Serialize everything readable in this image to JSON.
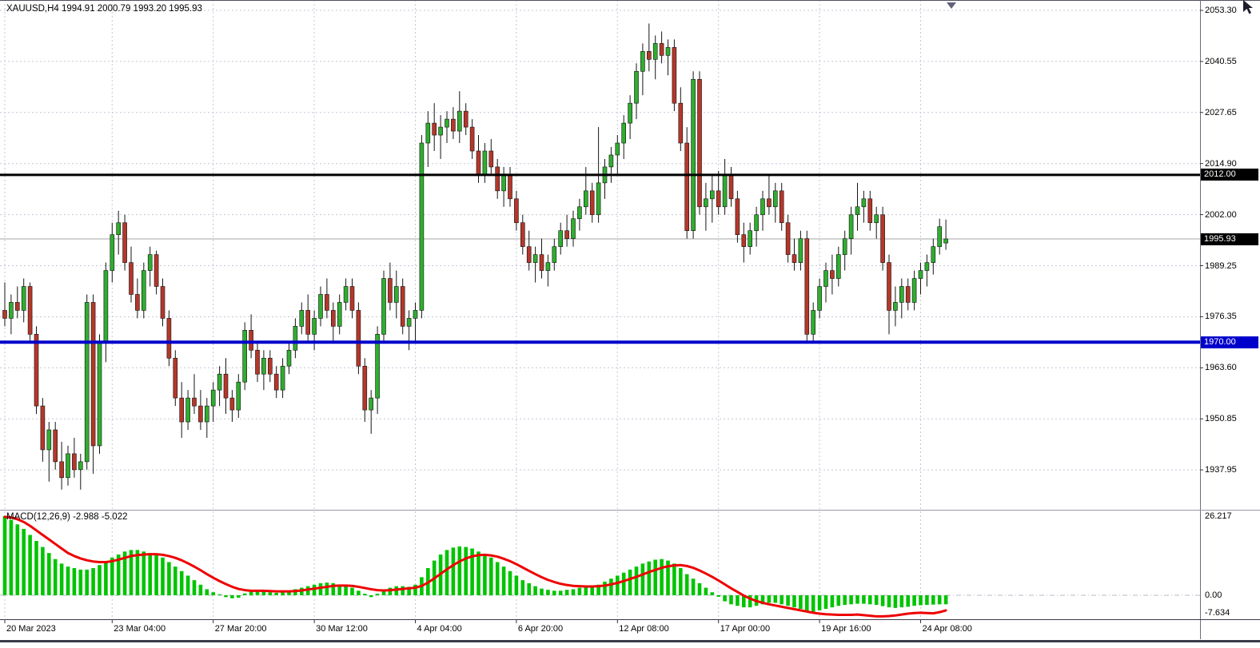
{
  "header": {
    "ohlc_line": "XAUUSD,H4 1994.91 2000.79 1993.20 1995.93"
  },
  "chart_data": {
    "type": "candlestick",
    "symbol": "XAUUSD",
    "timeframe": "H4",
    "current": {
      "open": 1994.91,
      "high": 2000.79,
      "low": 1993.2,
      "close": 1995.93
    },
    "price_axis": {
      "labels": [
        "2053.30",
        "2040.55",
        "2027.65",
        "2014.90",
        "2002.00",
        "1989.25",
        "1976.35",
        "1963.60",
        "1950.85",
        "1937.95"
      ],
      "values": [
        2053.3,
        2040.55,
        2027.65,
        2014.9,
        2002.0,
        1989.25,
        1976.35,
        1963.6,
        1950.85,
        1937.95
      ]
    },
    "time_axis": {
      "labels": [
        {
          "text": "20 Mar 2023",
          "bar": 0
        },
        {
          "text": "23 Mar 04:00",
          "bar": 17
        },
        {
          "text": "27 Mar 20:00",
          "bar": 33
        },
        {
          "text": "30 Mar 12:00",
          "bar": 49
        },
        {
          "text": "4 Apr 04:00",
          "bar": 65
        },
        {
          "text": "6 Apr 20:00",
          "bar": 81
        },
        {
          "text": "12 Apr 08:00",
          "bar": 97
        },
        {
          "text": "17 Apr 00:00",
          "bar": 113
        },
        {
          "text": "19 Apr 16:00",
          "bar": 129
        },
        {
          "text": "24 Apr 08:00",
          "bar": 145
        }
      ]
    },
    "hlines": [
      {
        "value": 2012.0,
        "label": "2012.00",
        "color": "#000000",
        "width": 3
      },
      {
        "value": 1970.0,
        "label": "1970.00",
        "color": "#0000cc",
        "width": 4
      }
    ],
    "current_price_badge": {
      "value": 1995.93,
      "label": "1995.93",
      "color": "#000000"
    },
    "candles": [
      [
        1978,
        1985,
        1974,
        1976
      ],
      [
        1976,
        1982,
        1972,
        1980
      ],
      [
        1980,
        1984,
        1976,
        1978
      ],
      [
        1978,
        1986,
        1975,
        1984
      ],
      [
        1984,
        1985,
        1970,
        1972
      ],
      [
        1972,
        1974,
        1952,
        1954
      ],
      [
        1954,
        1956,
        1940,
        1943
      ],
      [
        1943,
        1950,
        1935,
        1948
      ],
      [
        1948,
        1950,
        1938,
        1940
      ],
      [
        1940,
        1945,
        1933,
        1936
      ],
      [
        1936,
        1944,
        1934,
        1942
      ],
      [
        1942,
        1946,
        1936,
        1938
      ],
      [
        1938,
        1942,
        1933,
        1940
      ],
      [
        1940,
        1982,
        1938,
        1980
      ],
      [
        1980,
        1982,
        1937,
        1944
      ],
      [
        1944,
        1972,
        1942,
        1970
      ],
      [
        1970,
        1990,
        1965,
        1988
      ],
      [
        1988,
        2000,
        1985,
        1997
      ],
      [
        1997,
        2003,
        1992,
        2000
      ],
      [
        2000,
        2002,
        1988,
        1990
      ],
      [
        1990,
        1994,
        1980,
        1982
      ],
      [
        1982,
        1986,
        1976,
        1978
      ],
      [
        1978,
        1990,
        1976,
        1988
      ],
      [
        1988,
        1994,
        1984,
        1992
      ],
      [
        1992,
        1993,
        1982,
        1984
      ],
      [
        1984,
        1986,
        1974,
        1976
      ],
      [
        1976,
        1978,
        1964,
        1966
      ],
      [
        1966,
        1968,
        1954,
        1956
      ],
      [
        1956,
        1960,
        1946,
        1950
      ],
      [
        1950,
        1958,
        1948,
        1956
      ],
      [
        1956,
        1962,
        1952,
        1954
      ],
      [
        1954,
        1958,
        1948,
        1950
      ],
      [
        1950,
        1956,
        1946,
        1954
      ],
      [
        1954,
        1960,
        1950,
        1958
      ],
      [
        1958,
        1964,
        1954,
        1962
      ],
      [
        1962,
        1966,
        1952,
        1956
      ],
      [
        1956,
        1958,
        1950,
        1953
      ],
      [
        1953,
        1962,
        1951,
        1960
      ],
      [
        1960,
        1975,
        1958,
        1973
      ],
      [
        1973,
        1977,
        1966,
        1968
      ],
      [
        1968,
        1970,
        1960,
        1962
      ],
      [
        1962,
        1968,
        1958,
        1966
      ],
      [
        1966,
        1968,
        1960,
        1962
      ],
      [
        1962,
        1964,
        1956,
        1958
      ],
      [
        1958,
        1966,
        1956,
        1964
      ],
      [
        1964,
        1970,
        1962,
        1968
      ],
      [
        1968,
        1976,
        1966,
        1974
      ],
      [
        1974,
        1980,
        1972,
        1978
      ],
      [
        1978,
        1982,
        1970,
        1972
      ],
      [
        1972,
        1978,
        1968,
        1976
      ],
      [
        1976,
        1984,
        1974,
        1982
      ],
      [
        1982,
        1986,
        1976,
        1978
      ],
      [
        1978,
        1980,
        1970,
        1974
      ],
      [
        1974,
        1982,
        1972,
        1980
      ],
      [
        1980,
        1986,
        1978,
        1984
      ],
      [
        1984,
        1986,
        1976,
        1978
      ],
      [
        1978,
        1980,
        1962,
        1964
      ],
      [
        1964,
        1966,
        1950,
        1953
      ],
      [
        1953,
        1958,
        1947,
        1956
      ],
      [
        1956,
        1974,
        1952,
        1972
      ],
      [
        1972,
        1988,
        1970,
        1986
      ],
      [
        1986,
        1990,
        1978,
        1980
      ],
      [
        1980,
        1988,
        1976,
        1984
      ],
      [
        1984,
        1986,
        1972,
        1974
      ],
      [
        1974,
        1978,
        1968,
        1976
      ],
      [
        1976,
        1980,
        1970,
        1978
      ],
      [
        1978,
        2022,
        1976,
        2020
      ],
      [
        2020,
        2028,
        2014,
        2025
      ],
      [
        2025,
        2030,
        2018,
        2022
      ],
      [
        2022,
        2027,
        2016,
        2024
      ],
      [
        2024,
        2028,
        2020,
        2026
      ],
      [
        2026,
        2029,
        2021,
        2023
      ],
      [
        2023,
        2033,
        2020,
        2028
      ],
      [
        2028,
        2030,
        2022,
        2024
      ],
      [
        2024,
        2026,
        2016,
        2018
      ],
      [
        2018,
        2022,
        2010,
        2012
      ],
      [
        2012,
        2020,
        2010,
        2018
      ],
      [
        2018,
        2021,
        2012,
        2014
      ],
      [
        2014,
        2016,
        2006,
        2008
      ],
      [
        2008,
        2014,
        2004,
        2012
      ],
      [
        2012,
        2014,
        2004,
        2006
      ],
      [
        2006,
        2008,
        1998,
        2000
      ],
      [
        2000,
        2002,
        1992,
        1994
      ],
      [
        1994,
        1998,
        1988,
        1990
      ],
      [
        1990,
        1994,
        1985,
        1992
      ],
      [
        1992,
        1996,
        1986,
        1988
      ],
      [
        1988,
        1992,
        1984,
        1990
      ],
      [
        1990,
        1996,
        1988,
        1994
      ],
      [
        1994,
        2000,
        1992,
        1998
      ],
      [
        1998,
        2002,
        1994,
        1996
      ],
      [
        1996,
        2003,
        1994,
        2001
      ],
      [
        2001,
        2006,
        1998,
        2004
      ],
      [
        2004,
        2014,
        2002,
        2008
      ],
      [
        2008,
        2010,
        2000,
        2002
      ],
      [
        2002,
        2024,
        2000,
        2010
      ],
      [
        2010,
        2016,
        2006,
        2014
      ],
      [
        2014,
        2019,
        2010,
        2017
      ],
      [
        2017,
        2022,
        2012,
        2020
      ],
      [
        2020,
        2027,
        2016,
        2025
      ],
      [
        2025,
        2032,
        2021,
        2030
      ],
      [
        2030,
        2040,
        2026,
        2038
      ],
      [
        2038,
        2045,
        2032,
        2043
      ],
      [
        2043,
        2050,
        2038,
        2041
      ],
      [
        2041,
        2047,
        2036,
        2045
      ],
      [
        2045,
        2048,
        2040,
        2042
      ],
      [
        2042,
        2046,
        2037,
        2044
      ],
      [
        2044,
        2046,
        2028,
        2030
      ],
      [
        2030,
        2034,
        2018,
        2020
      ],
      [
        2020,
        2024,
        1996,
        1998
      ],
      [
        1998,
        2038,
        1996,
        2036
      ],
      [
        2036,
        2038,
        2002,
        2004
      ],
      [
        2004,
        2010,
        1998,
        2006
      ],
      [
        2006,
        2012,
        2000,
        2008
      ],
      [
        2008,
        2013,
        2002,
        2004
      ],
      [
        2004,
        2016,
        2002,
        2012
      ],
      [
        2012,
        2014,
        2004,
        2006
      ],
      [
        2006,
        2008,
        1995,
        1997
      ],
      [
        1997,
        2000,
        1990,
        1994
      ],
      [
        1994,
        2000,
        1992,
        1998
      ],
      [
        1998,
        2004,
        1994,
        2002
      ],
      [
        2002,
        2008,
        1998,
        2006
      ],
      [
        2006,
        2012,
        2002,
        2004
      ],
      [
        2004,
        2010,
        2000,
        2008
      ],
      [
        2008,
        2010,
        1998,
        2000
      ],
      [
        2000,
        2002,
        1990,
        1992
      ],
      [
        1992,
        1996,
        1988,
        1990
      ],
      [
        1990,
        1998,
        1988,
        1996
      ],
      [
        1996,
        1998,
        1970,
        1972
      ],
      [
        1972,
        1980,
        1970,
        1978
      ],
      [
        1978,
        1986,
        1976,
        1984
      ],
      [
        1984,
        1990,
        1980,
        1988
      ],
      [
        1988,
        1992,
        1982,
        1986
      ],
      [
        1986,
        1994,
        1984,
        1992
      ],
      [
        1992,
        1998,
        1988,
        1996
      ],
      [
        1996,
        2004,
        1992,
        2002
      ],
      [
        2002,
        2010,
        1998,
        2004
      ],
      [
        2004,
        2008,
        2000,
        2006
      ],
      [
        2006,
        2008,
        1998,
        2000
      ],
      [
        2000,
        2004,
        1996,
        2002
      ],
      [
        2002,
        2004,
        1988,
        1990
      ],
      [
        1990,
        1992,
        1972,
        1978
      ],
      [
        1978,
        1984,
        1974,
        1980
      ],
      [
        1980,
        1986,
        1976,
        1984
      ],
      [
        1984,
        1986,
        1978,
        1980
      ],
      [
        1980,
        1988,
        1978,
        1986
      ],
      [
        1986,
        1990,
        1982,
        1988
      ],
      [
        1988,
        1992,
        1984,
        1990
      ],
      [
        1990,
        1996,
        1987,
        1994
      ],
      [
        1994,
        2001,
        1992,
        1999
      ],
      [
        1994.91,
        2000.79,
        1993.2,
        1995.93
      ]
    ],
    "macd": {
      "name": "MACD",
      "params": "12,26,9",
      "label": "MACD(12,26,9) -2.988 -5.022",
      "macd_value": -2.988,
      "signal_value": -5.022,
      "axis_labels": [
        "26.217",
        "0.00",
        "-7.634"
      ],
      "axis_values": [
        26.217,
        0,
        -7.634
      ],
      "histogram": [
        26.217,
        25,
        23.5,
        22,
        20,
        18,
        16,
        14,
        12,
        10.5,
        9.5,
        9,
        8.5,
        8.5,
        9,
        10,
        11,
        12.5,
        13.5,
        14.5,
        15,
        15,
        14.5,
        14,
        13.5,
        12.5,
        11,
        9.5,
        8,
        6.5,
        5,
        3.5,
        2,
        1,
        0.3,
        -0.6,
        -1,
        -0.8,
        0.6,
        1.5,
        1.8,
        1.5,
        1,
        0.8,
        1,
        1.5,
        2,
        2.5,
        3,
        3.5,
        4,
        4.2,
        4,
        3.5,
        3,
        2.5,
        1.5,
        0.5,
        -0.6,
        0.5,
        1.5,
        2.5,
        3,
        3,
        2.8,
        3.5,
        6,
        9,
        11.5,
        13.5,
        15,
        15.8,
        16.2,
        16,
        15.5,
        14.5,
        13.5,
        12.5,
        11,
        9.5,
        8,
        6.5,
        5,
        4,
        3,
        2.2,
        1.8,
        1.5,
        1.5,
        1.8,
        2,
        2.5,
        3,
        3,
        3.5,
        4.5,
        5.5,
        6.5,
        7.5,
        8.5,
        9.5,
        10.5,
        11.2,
        11.8,
        12,
        11.5,
        10.5,
        9,
        7,
        5.5,
        4,
        2.5,
        1,
        -0.5,
        -2,
        -3,
        -3.5,
        -4,
        -4,
        -3.5,
        -3,
        -2.5,
        -2.5,
        -3,
        -3.5,
        -4,
        -4.5,
        -5.5,
        -5.5,
        -5,
        -4.5,
        -4,
        -3.5,
        -3.2,
        -3,
        -2.8,
        -2.8,
        -3,
        -3.2,
        -3.6,
        -4,
        -4.2,
        -4,
        -3.8,
        -3.5,
        -3.3,
        -3.2,
        -3.1,
        -3,
        -2.988
      ],
      "signal": [
        26,
        25.8,
        25.2,
        24.3,
        23,
        21.5,
        20,
        18.5,
        17,
        15.5,
        14,
        13,
        12.2,
        11.6,
        11.2,
        11,
        11,
        11.3,
        11.8,
        12.4,
        13,
        13.3,
        13.5,
        13.6,
        13.6,
        13.4,
        13,
        12.4,
        11.6,
        10.6,
        9.5,
        8.3,
        7,
        5.8,
        4.7,
        3.7,
        2.8,
        2.1,
        1.7,
        1.5,
        1.5,
        1.5,
        1.4,
        1.3,
        1.3,
        1.3,
        1.4,
        1.6,
        1.9,
        2.2,
        2.5,
        2.8,
        3.1,
        3.2,
        3.2,
        3.1,
        2.8,
        2.4,
        2,
        1.7,
        1.6,
        1.7,
        1.9,
        2.1,
        2.3,
        2.5,
        3.1,
        4.2,
        5.6,
        7.1,
        8.6,
        10,
        11.2,
        12.2,
        12.9,
        13.3,
        13.4,
        13.2,
        12.8,
        12.1,
        11.3,
        10.3,
        9.2,
        8.1,
        7,
        6,
        5.1,
        4.4,
        3.8,
        3.4,
        3.1,
        3,
        2.9,
        2.9,
        3,
        3.2,
        3.6,
        4.1,
        4.7,
        5.4,
        6.1,
        6.9,
        7.7,
        8.4,
        9.1,
        9.6,
        9.9,
        10,
        9.7,
        9.1,
        8.2,
        7.2,
        6.1,
        4.9,
        3.6,
        2.3,
        1.1,
        -0.1,
        -1.1,
        -1.9,
        -2.5,
        -3,
        -3.4,
        -3.8,
        -4.2,
        -4.6,
        -5,
        -5.4,
        -5.8,
        -6.1,
        -6.3,
        -6.4,
        -6.5,
        -6.5,
        -6.5,
        -6.4,
        -6.6,
        -6.8,
        -7,
        -7,
        -6.9,
        -6.7,
        -6.4,
        -6.1,
        -5.9,
        -5.8,
        -5.9,
        -6,
        -5.6,
        -5.022
      ]
    },
    "colors": {
      "bull": "#2fae2f",
      "bear": "#b5372a",
      "wick": "#151515",
      "histogram": "#00c400",
      "signal": "#ee0000",
      "grid": "#c6c6da",
      "current_line": "#a6a6a6",
      "badge_text": "#ffffff"
    }
  }
}
